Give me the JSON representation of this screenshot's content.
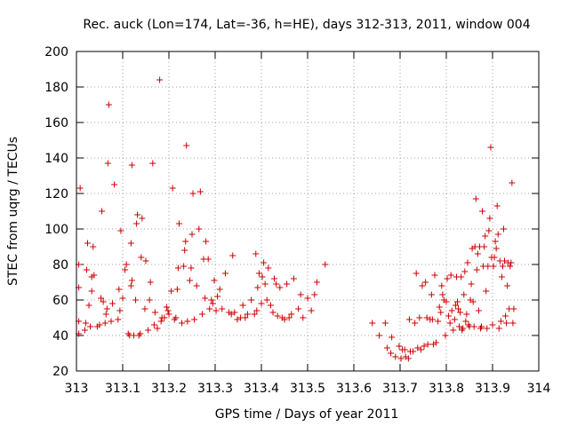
{
  "chart_data": {
    "type": "scatter",
    "title": "Rec. auck (Lon=174, Lat=-36, h=HE), days 312-313, 2011, window 004",
    "xlabel": "GPS time / Days of year 2011",
    "ylabel": "STEC from uqrg / TECUs",
    "xlim": [
      313,
      314
    ],
    "ylim": [
      20,
      200
    ],
    "xticks": [
      "313",
      "313.1",
      "313.2",
      "313.3",
      "313.4",
      "313.5",
      "313.6",
      "313.7",
      "313.8",
      "313.9",
      "314"
    ],
    "xtick_values": [
      313,
      313.1,
      313.2,
      313.3,
      313.4,
      313.5,
      313.6,
      313.7,
      313.8,
      313.9,
      314
    ],
    "yticks": [
      "20",
      "40",
      "60",
      "80",
      "100",
      "120",
      "140",
      "160",
      "180",
      "200"
    ],
    "ytick_values": [
      20,
      40,
      60,
      80,
      100,
      120,
      140,
      160,
      180,
      200
    ],
    "grid": true,
    "marker": "plus",
    "color": "#cc0000",
    "series": [
      {
        "points": [
          [
            313.005,
            41
          ],
          [
            313.005,
            48
          ],
          [
            313.005,
            67
          ],
          [
            313.005,
            80
          ],
          [
            313.008,
            123
          ],
          [
            313.018,
            43
          ],
          [
            313.02,
            47
          ],
          [
            313.022,
            77
          ],
          [
            313.024,
            92
          ],
          [
            313.027,
            57
          ],
          [
            313.03,
            45
          ],
          [
            313.033,
            65
          ],
          [
            313.033,
            73
          ],
          [
            313.036,
            90
          ],
          [
            313.038,
            74
          ],
          [
            313.045,
            45
          ],
          [
            313.05,
            46
          ],
          [
            313.053,
            61
          ],
          [
            313.055,
            110
          ],
          [
            313.058,
            59
          ],
          [
            313.062,
            47
          ],
          [
            313.064,
            52
          ],
          [
            313.066,
            55
          ],
          [
            313.068,
            137
          ],
          [
            313.07,
            170
          ],
          [
            313.075,
            48
          ],
          [
            313.078,
            58
          ],
          [
            313.082,
            125
          ],
          [
            313.09,
            49
          ],
          [
            313.092,
            66
          ],
          [
            313.094,
            54
          ],
          [
            313.096,
            99
          ],
          [
            313.1,
            61
          ],
          [
            313.105,
            77
          ],
          [
            313.108,
            80
          ],
          [
            313.112,
            41
          ],
          [
            313.115,
            40
          ],
          [
            313.118,
            68
          ],
          [
            313.12,
            71
          ],
          [
            313.118,
            92
          ],
          [
            313.12,
            136
          ],
          [
            313.124,
            40
          ],
          [
            313.128,
            60
          ],
          [
            313.13,
            103
          ],
          [
            313.132,
            108
          ],
          [
            313.135,
            40
          ],
          [
            313.138,
            41
          ],
          [
            313.14,
            84
          ],
          [
            313.142,
            106
          ],
          [
            313.148,
            55
          ],
          [
            313.15,
            82
          ],
          [
            313.155,
            43
          ],
          [
            313.158,
            60
          ],
          [
            313.16,
            70
          ],
          [
            313.165,
            137
          ],
          [
            313.168,
            46
          ],
          [
            313.17,
            53
          ],
          [
            313.175,
            44
          ],
          [
            313.18,
            184
          ],
          [
            313.183,
            48
          ],
          [
            313.185,
            50
          ],
          [
            313.19,
            50
          ],
          [
            313.195,
            56
          ],
          [
            313.198,
            54
          ],
          [
            313.2,
            52
          ],
          [
            313.205,
            65
          ],
          [
            313.208,
            123
          ],
          [
            313.212,
            49
          ],
          [
            313.215,
            50
          ],
          [
            313.218,
            66
          ],
          [
            313.22,
            78
          ],
          [
            313.222,
            103
          ],
          [
            313.228,
            47
          ],
          [
            313.232,
            79
          ],
          [
            313.234,
            88
          ],
          [
            313.236,
            93
          ],
          [
            313.238,
            147
          ],
          [
            313.24,
            48
          ],
          [
            313.245,
            71
          ],
          [
            313.248,
            78
          ],
          [
            313.25,
            97
          ],
          [
            313.252,
            120
          ],
          [
            313.255,
            49
          ],
          [
            313.26,
            68
          ],
          [
            313.265,
            100
          ],
          [
            313.268,
            121
          ],
          [
            313.272,
            52
          ],
          [
            313.275,
            83
          ],
          [
            313.278,
            61
          ],
          [
            313.28,
            93
          ],
          [
            313.285,
            83
          ],
          [
            313.288,
            55
          ],
          [
            313.292,
            60
          ],
          [
            313.295,
            58
          ],
          [
            313.298,
            71
          ],
          [
            313.302,
            54
          ],
          [
            313.305,
            62
          ],
          [
            313.31,
            66
          ],
          [
            313.315,
            55
          ],
          [
            313.322,
            75
          ],
          [
            313.33,
            53
          ],
          [
            313.335,
            52
          ],
          [
            313.338,
            85
          ],
          [
            313.342,
            53
          ],
          [
            313.348,
            49
          ],
          [
            313.355,
            50
          ],
          [
            313.36,
            57
          ],
          [
            313.365,
            50
          ],
          [
            313.37,
            52
          ],
          [
            313.378,
            60
          ],
          [
            313.385,
            52
          ],
          [
            313.388,
            86
          ],
          [
            313.39,
            54
          ],
          [
            313.392,
            67
          ],
          [
            313.395,
            75
          ],
          [
            313.4,
            58
          ],
          [
            313.402,
            73
          ],
          [
            313.405,
            81
          ],
          [
            313.408,
            69
          ],
          [
            313.412,
            60
          ],
          [
            313.415,
            78
          ],
          [
            313.42,
            57
          ],
          [
            313.425,
            53
          ],
          [
            313.428,
            72
          ],
          [
            313.432,
            69
          ],
          [
            313.435,
            51
          ],
          [
            313.44,
            67
          ],
          [
            313.445,
            50
          ],
          [
            313.45,
            49
          ],
          [
            313.455,
            69
          ],
          [
            313.46,
            50
          ],
          [
            313.465,
            52
          ],
          [
            313.47,
            72
          ],
          [
            313.48,
            55
          ],
          [
            313.485,
            63
          ],
          [
            313.49,
            50
          ],
          [
            313.5,
            61
          ],
          [
            313.508,
            54
          ],
          [
            313.515,
            63
          ],
          [
            313.52,
            70
          ],
          [
            313.538,
            80
          ],
          [
            313.64,
            47
          ],
          [
            313.655,
            40
          ],
          [
            313.668,
            47
          ],
          [
            313.672,
            33
          ],
          [
            313.68,
            30
          ],
          [
            313.682,
            39
          ],
          [
            313.69,
            28
          ],
          [
            313.698,
            34
          ],
          [
            313.702,
            27
          ],
          [
            313.705,
            32
          ],
          [
            313.71,
            32
          ],
          [
            313.712,
            28
          ],
          [
            313.718,
            27
          ],
          [
            313.72,
            49
          ],
          [
            313.722,
            31
          ],
          [
            313.728,
            31
          ],
          [
            313.732,
            47
          ],
          [
            313.735,
            75
          ],
          [
            313.738,
            33
          ],
          [
            313.742,
            50
          ],
          [
            313.745,
            32
          ],
          [
            313.748,
            68
          ],
          [
            313.752,
            34
          ],
          [
            313.755,
            70
          ],
          [
            313.758,
            50
          ],
          [
            313.76,
            35
          ],
          [
            313.765,
            49
          ],
          [
            313.768,
            63
          ],
          [
            313.77,
            49
          ],
          [
            313.772,
            35
          ],
          [
            313.775,
            74
          ],
          [
            313.778,
            36
          ],
          [
            313.782,
            48
          ],
          [
            313.785,
            56
          ],
          [
            313.788,
            53
          ],
          [
            313.79,
            68
          ],
          [
            313.792,
            63
          ],
          [
            313.795,
            60
          ],
          [
            313.798,
            40
          ],
          [
            313.8,
            59
          ],
          [
            313.802,
            72
          ],
          [
            313.805,
            51
          ],
          [
            313.808,
            47
          ],
          [
            313.81,
            74
          ],
          [
            313.812,
            54
          ],
          [
            313.815,
            43
          ],
          [
            313.818,
            49
          ],
          [
            313.82,
            57
          ],
          [
            313.822,
            73
          ],
          [
            313.824,
            59
          ],
          [
            313.826,
            55
          ],
          [
            313.828,
            45
          ],
          [
            313.83,
            53
          ],
          [
            313.832,
            73
          ],
          [
            313.834,
            43
          ],
          [
            313.836,
            44
          ],
          [
            313.838,
            63
          ],
          [
            313.84,
            76
          ],
          [
            313.842,
            48
          ],
          [
            313.844,
            52
          ],
          [
            313.846,
            81
          ],
          [
            313.848,
            46
          ],
          [
            313.85,
            45
          ],
          [
            313.852,
            60
          ],
          [
            313.854,
            69
          ],
          [
            313.856,
            89
          ],
          [
            313.858,
            59
          ],
          [
            313.86,
            45
          ],
          [
            313.862,
            90
          ],
          [
            313.864,
            117
          ],
          [
            313.866,
            77
          ],
          [
            313.868,
            86
          ],
          [
            313.87,
            54
          ],
          [
            313.872,
            90
          ],
          [
            313.874,
            44
          ],
          [
            313.876,
            45
          ],
          [
            313.878,
            110
          ],
          [
            313.88,
            79
          ],
          [
            313.882,
            90
          ],
          [
            313.884,
            96
          ],
          [
            313.886,
            65
          ],
          [
            313.888,
            44
          ],
          [
            313.89,
            79
          ],
          [
            313.892,
            99
          ],
          [
            313.894,
            106
          ],
          [
            313.896,
            146
          ],
          [
            313.898,
            84
          ],
          [
            313.9,
            46
          ],
          [
            313.902,
            79
          ],
          [
            313.904,
            84
          ],
          [
            313.906,
            93
          ],
          [
            313.908,
            89
          ],
          [
            313.91,
            113
          ],
          [
            313.912,
            97
          ],
          [
            313.914,
            44
          ],
          [
            313.916,
            82
          ],
          [
            313.918,
            48
          ],
          [
            313.92,
            73
          ],
          [
            313.922,
            79
          ],
          [
            313.924,
            100
          ],
          [
            313.926,
            82
          ],
          [
            313.928,
            51
          ],
          [
            313.93,
            47
          ],
          [
            313.932,
            68
          ],
          [
            313.934,
            81
          ],
          [
            313.936,
            55
          ],
          [
            313.938,
            79
          ],
          [
            313.94,
            81
          ],
          [
            313.942,
            126
          ],
          [
            313.944,
            47
          ],
          [
            313.946,
            55
          ]
        ]
      }
    ]
  }
}
